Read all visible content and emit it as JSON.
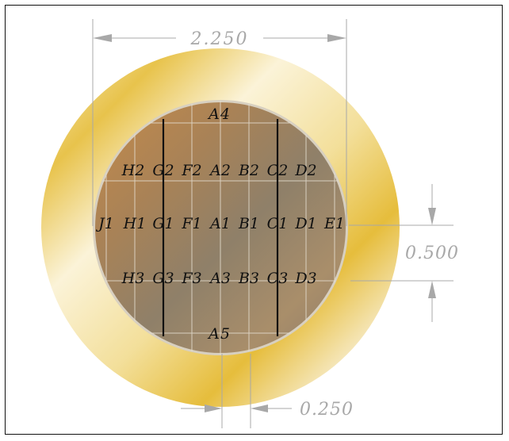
{
  "dimensions": {
    "overall_width": "2.250",
    "row_height": "0.500",
    "column_width": "0.250"
  },
  "labels": {
    "top": "A4",
    "bottom": "A5",
    "row2": [
      "H2",
      "G2",
      "F2",
      "A2",
      "B2",
      "C2",
      "D2"
    ],
    "row1": [
      "J1",
      "H1",
      "G1",
      "F1",
      "A1",
      "B1",
      "C1",
      "D1",
      "E1"
    ],
    "row3": [
      "H3",
      "G3",
      "F3",
      "A3",
      "B3",
      "C3",
      "D3"
    ]
  },
  "colors": {
    "ring_gold": "#e9c64a",
    "wafer_brown": "#9b7b53",
    "dimension_gray": "#a8a8a8",
    "cut_line": "#111111"
  }
}
